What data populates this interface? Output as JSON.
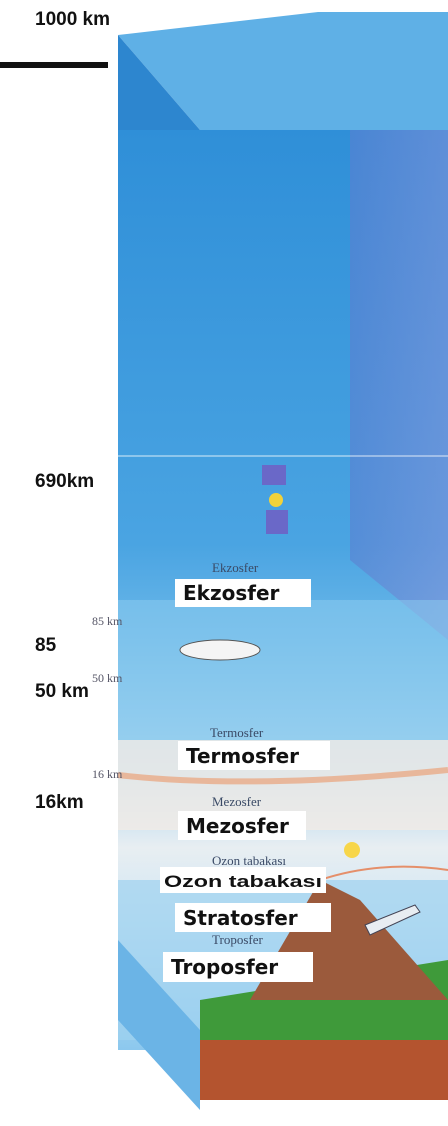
{
  "altitude_labels": [
    "1000 km",
    "690km",
    "85",
    "50 km",
    "16km"
  ],
  "small_altitude_labels": [
    "85 km",
    "50 km",
    "16 km"
  ],
  "layer_labels": [
    "Ekzosfer",
    "Termosfer",
    "Mezosfer",
    "Ozon tabakası",
    "Stratosfer",
    "Troposfer"
  ],
  "original_layer_labels": [
    "Ekzosfer",
    "Termosfer",
    "Mezosfer",
    "Ozon tabakası",
    "Troposfer"
  ]
}
